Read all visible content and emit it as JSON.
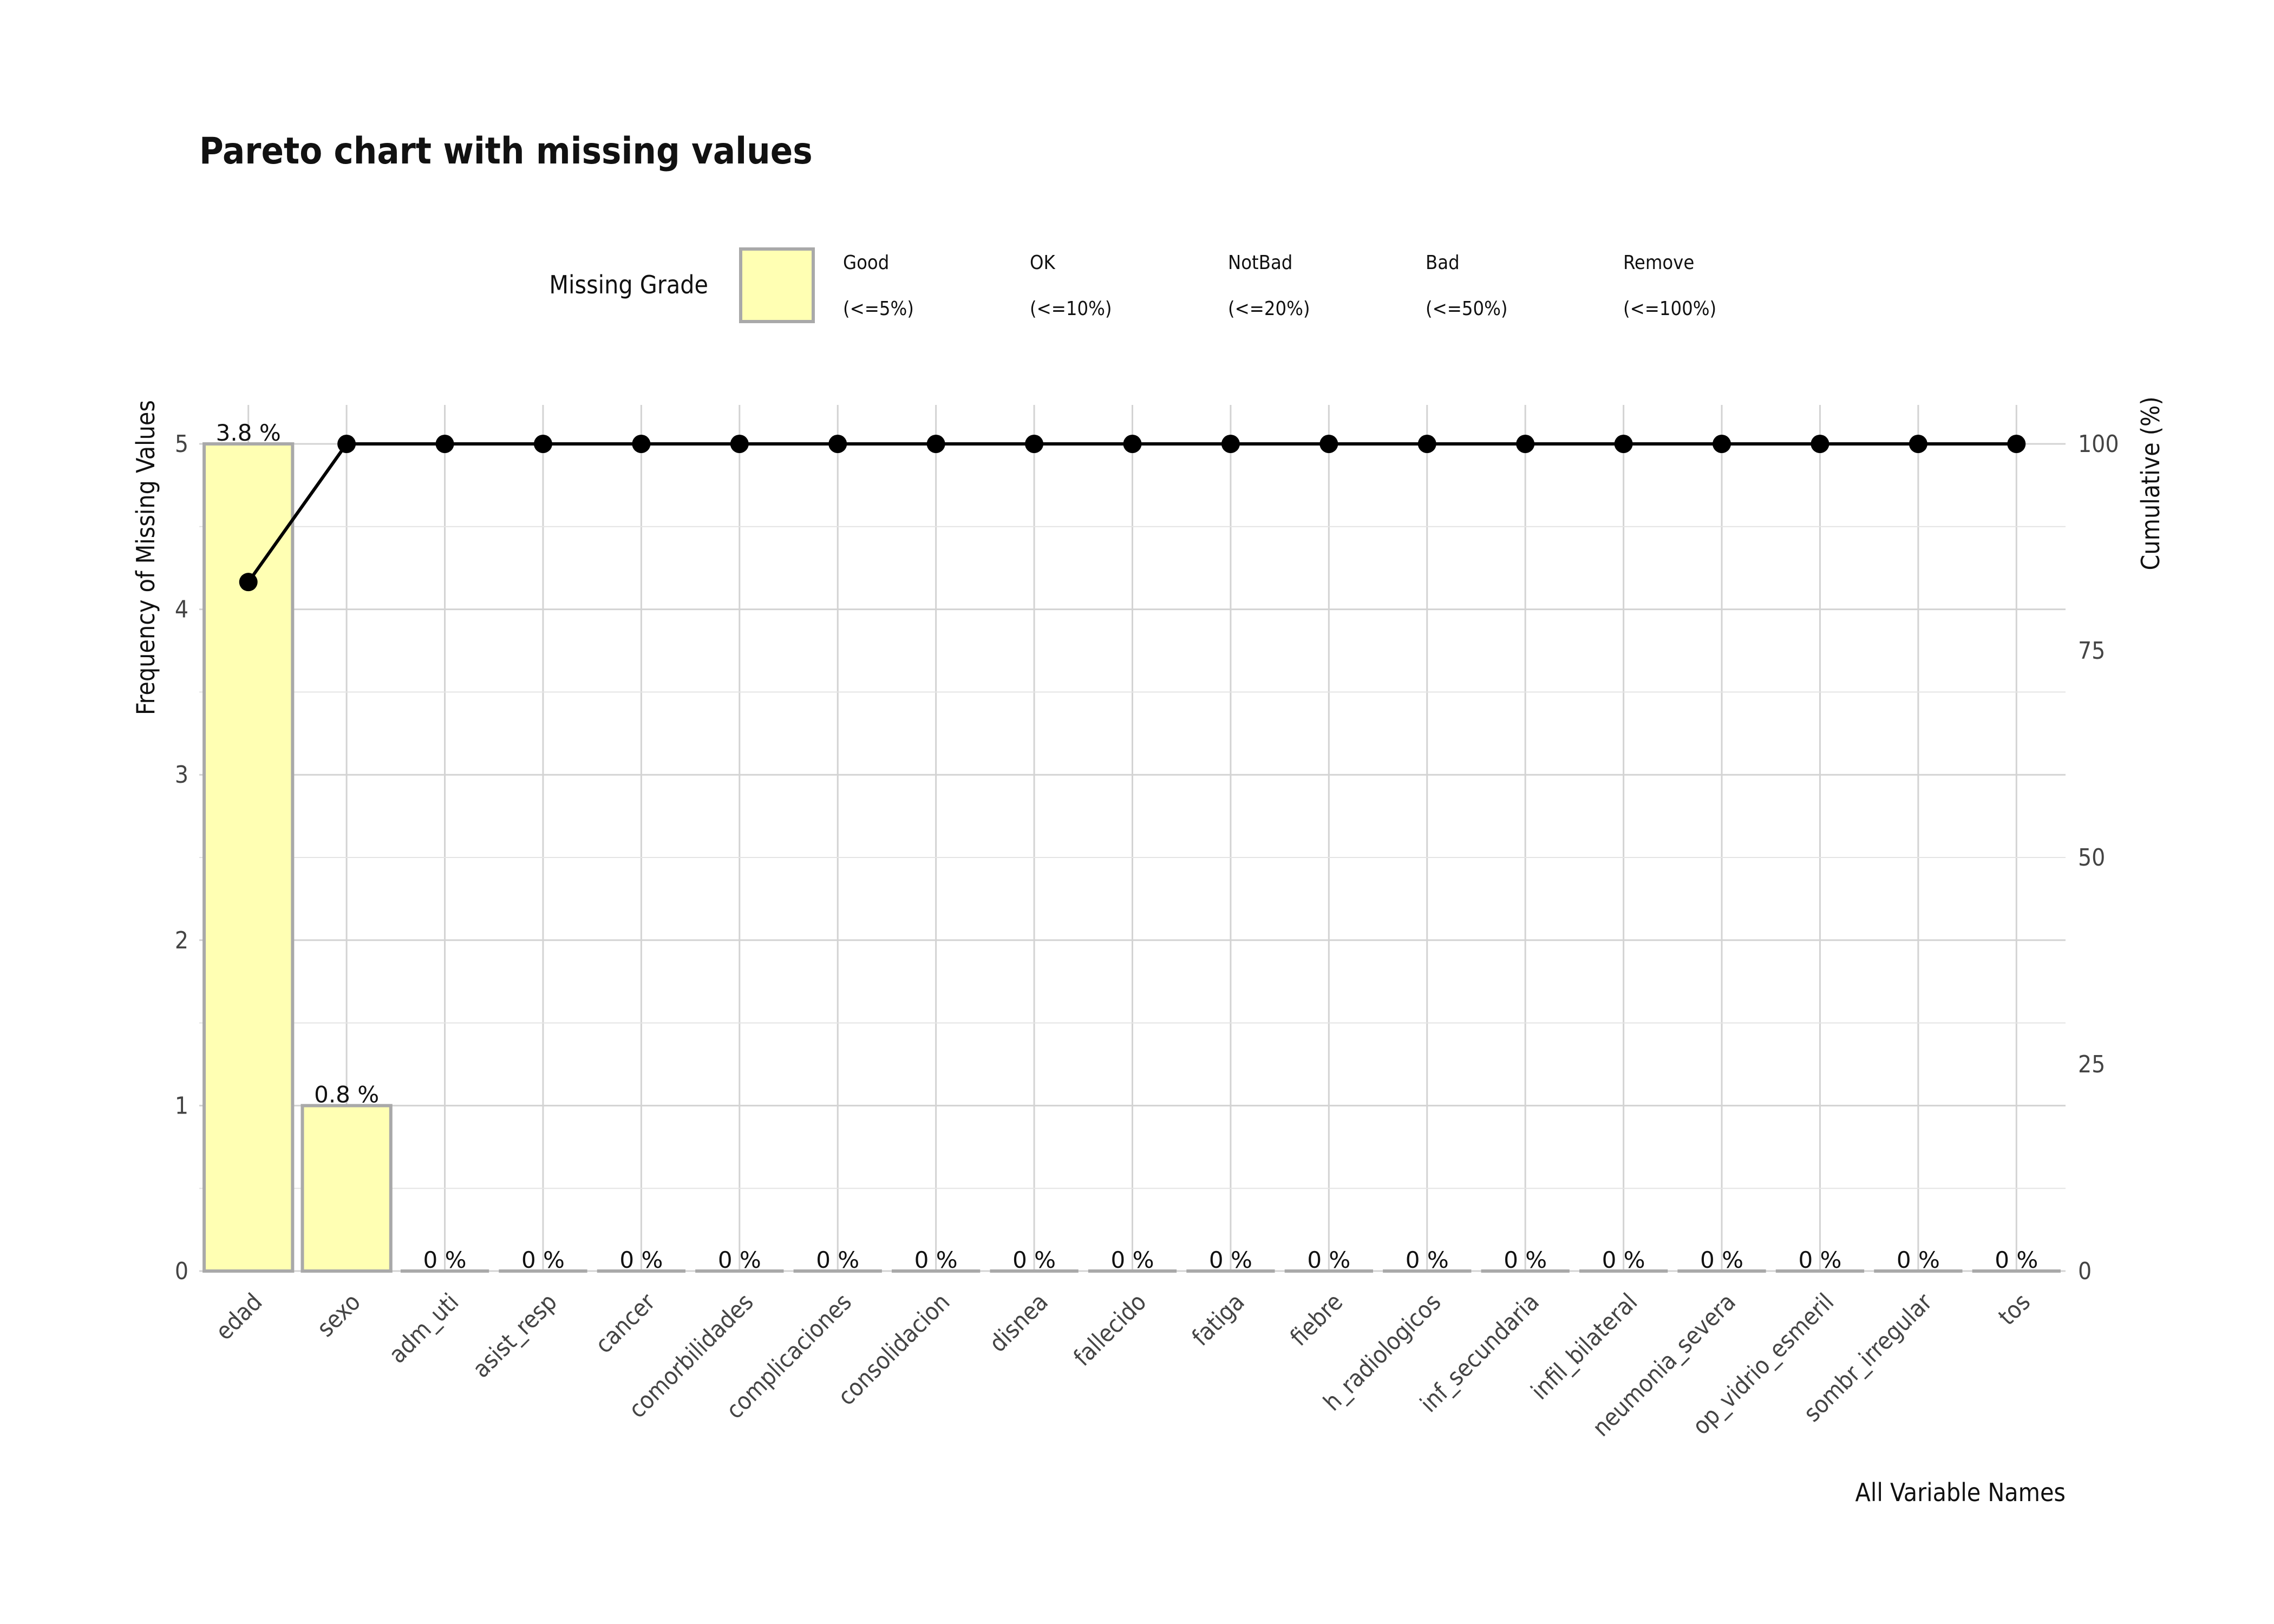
{
  "chart_data": {
    "type": "bar",
    "title": "Pareto chart with missing values",
    "xlabel": "All Variable Names",
    "ylabel": "Frequency of Missing Values",
    "y2label": "Cumulative (%)",
    "ylim": [
      0,
      5
    ],
    "y2lim": [
      0,
      100
    ],
    "yticks": [
      "0",
      "1",
      "2",
      "3",
      "4",
      "5"
    ],
    "y2ticks": [
      "0",
      "25",
      "50",
      "75",
      "100"
    ],
    "grid": true,
    "legend": {
      "title": "Missing Grade",
      "position": "top",
      "items": [
        {
          "grade": "Good",
          "range": "(<=5%)",
          "color": "#ffffb3"
        },
        {
          "grade": "OK",
          "range": "(<=10%)"
        },
        {
          "grade": "NotBad",
          "range": "(<=20%)"
        },
        {
          "grade": "Bad",
          "range": "(<=50%)"
        },
        {
          "grade": "Remove",
          "range": "(<=100%)"
        }
      ]
    },
    "colors": {
      "bar_fill": "#ffffb3",
      "bar_border": "#a9a9a9",
      "line": "#000000",
      "point": "#000000"
    },
    "categories": [
      "edad",
      "sexo",
      "adm_uti",
      "asist_resp",
      "cancer",
      "comorbilidades",
      "complicaciones",
      "consolidacion",
      "disnea",
      "fallecido",
      "fatiga",
      "fiebre",
      "h_radiologicos",
      "inf_secundaria",
      "infil_bilateral",
      "neumonia_severa",
      "op_vidrio_esmeril",
      "sombr_irregular",
      "tos"
    ],
    "series": [
      {
        "name": "Frequency of Missing Values",
        "type": "bar",
        "axis": "left",
        "values": [
          5,
          1,
          0,
          0,
          0,
          0,
          0,
          0,
          0,
          0,
          0,
          0,
          0,
          0,
          0,
          0,
          0,
          0,
          0
        ]
      },
      {
        "name": "Cumulative (%)",
        "type": "line",
        "axis": "right",
        "values": [
          83.3,
          100,
          100,
          100,
          100,
          100,
          100,
          100,
          100,
          100,
          100,
          100,
          100,
          100,
          100,
          100,
          100,
          100,
          100
        ]
      }
    ],
    "data_labels": [
      "3.8 %",
      "0.8 %",
      "0 %",
      "0 %",
      "0 %",
      "0 %",
      "0 %",
      "0 %",
      "0 %",
      "0 %",
      "0 %",
      "0 %",
      "0 %",
      "0 %",
      "0 %",
      "0 %",
      "0 %",
      "0 %",
      "0 %"
    ]
  }
}
